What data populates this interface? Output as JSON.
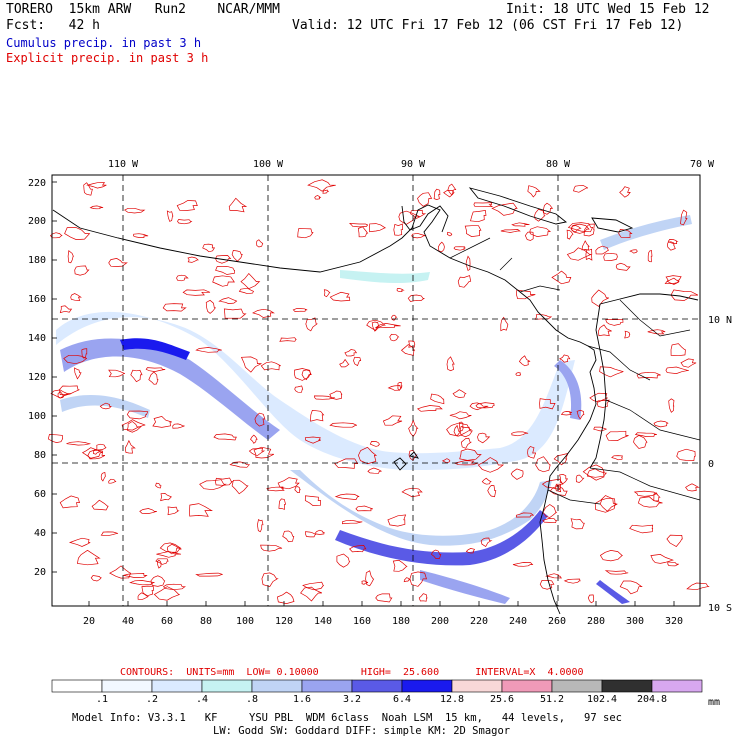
{
  "header": {
    "model_line": "TORERO  15km ARW   Run2    NCAR/MMM",
    "init_line": "Init: 18 UTC Wed 15 Feb 12",
    "fcst_line": "Fcst:   42 h",
    "valid_line": "Valid: 12 UTC Fri 17 Feb 12 (06 CST Fri 17 Feb 12)",
    "legend_cumulus": "Cumulus precip. in past 3 h",
    "legend_explicit": "Explicit precip. in past 3 h"
  },
  "colors": {
    "cumulus_text": "#0000c8",
    "explicit_text": "#e00000",
    "contour": "#e00000",
    "coast": "#000000"
  },
  "map": {
    "top_lon_labels": [
      "110 W",
      "100 W",
      "90 W",
      "80 W",
      "70 W"
    ],
    "right_lat_labels": [
      "10 N",
      "0",
      "10 S"
    ],
    "y_ticks": [
      "220",
      "200",
      "180",
      "160",
      "140",
      "120",
      "100",
      "80",
      "60",
      "40",
      "20"
    ],
    "x_ticks": [
      "20",
      "40",
      "60",
      "80",
      "100",
      "120",
      "140",
      "160",
      "180",
      "200",
      "220",
      "240",
      "260",
      "280",
      "300",
      "320"
    ]
  },
  "contour_info": {
    "line": "CONTOURS:  UNITS=mm  LOW= 0.10000       HIGH=  25.600      INTERVAL=X  4.0000"
  },
  "colorbar": {
    "unit": "mm",
    "labels": [
      ".1",
      ".2",
      ".4",
      ".8",
      "1.6",
      "3.2",
      "6.4",
      "12.8",
      "25.6",
      "51.2",
      "102.4",
      "204.8"
    ],
    "swatches": [
      "#ffffff",
      "#f2f8ff",
      "#dbeaff",
      "#c6f2f2",
      "#c0d4f5",
      "#9aa4f0",
      "#5a5ae6",
      "#1a1aee",
      "#f8d8d8",
      "#f09ab8",
      "#b8b8b8",
      "#303030",
      "#d8a8f0"
    ]
  },
  "footer": {
    "line1": "Model Info: V3.3.1   KF     YSU PBL  WDM 6class  Noah LSM  15 km,   44 levels,   97 sec",
    "line2": "LW: Godd SW: Goddard DIFF: simple KM: 2D Smagor"
  }
}
